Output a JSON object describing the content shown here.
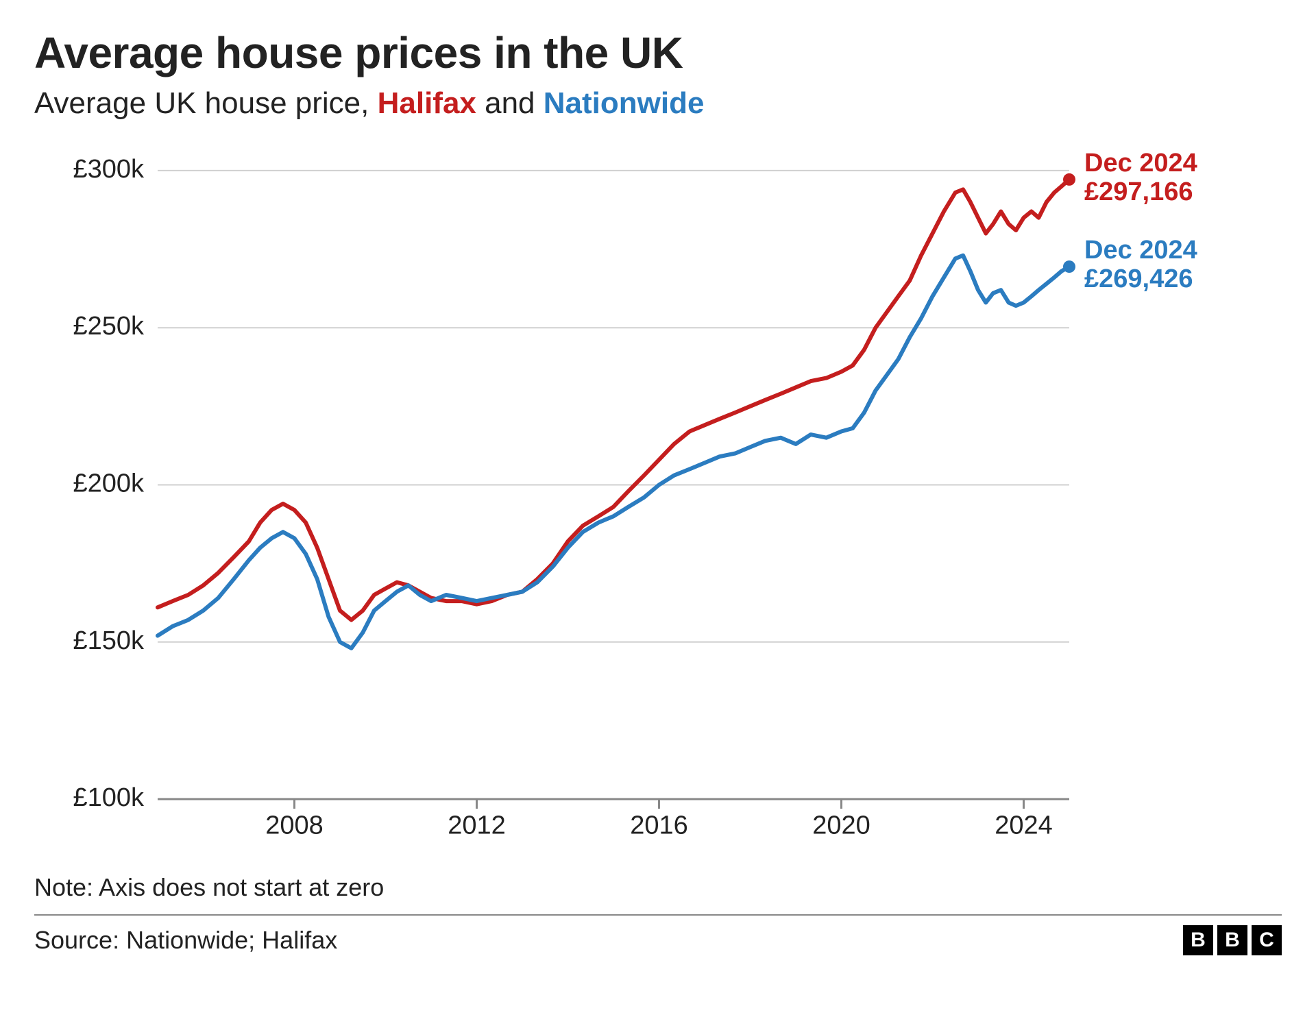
{
  "title": "Average house prices in the UK",
  "subtitle_prefix": "Average UK house price, ",
  "subtitle_series_a": "Halifax",
  "subtitle_join": " and ",
  "subtitle_series_b": "Nationwide",
  "series_a_color": "#c41e1e",
  "series_b_color": "#2b7cc0",
  "note": "Note: Axis does not start at zero",
  "source": "Source: Nationwide; Halifax",
  "logo_letters": [
    "B",
    "B",
    "C"
  ],
  "chart": {
    "type": "line",
    "background_color": "#ffffff",
    "grid_color": "#d0d0d0",
    "axis_color": "#888888",
    "line_width": 6,
    "font_size_axis": 38,
    "font_size_endlabel": 38,
    "x": {
      "min": 2005.0,
      "max": 2025.0,
      "ticks": [
        2008,
        2012,
        2016,
        2020,
        2024
      ],
      "tick_labels": [
        "2008",
        "2012",
        "2016",
        "2020",
        "2024"
      ]
    },
    "y": {
      "min": 100,
      "max": 305,
      "ticks": [
        100,
        150,
        200,
        250,
        300
      ],
      "tick_labels": [
        "£100k",
        "£150k",
        "£200k",
        "£250k",
        "£300k"
      ]
    },
    "series": [
      {
        "name": "Halifax",
        "color": "#c41e1e",
        "end_label_line1": "Dec 2024",
        "end_label_line2": "£297,166",
        "end_value": 297.166,
        "end_marker_radius": 9,
        "data": [
          [
            2005.0,
            161
          ],
          [
            2005.33,
            163
          ],
          [
            2005.67,
            165
          ],
          [
            2006.0,
            168
          ],
          [
            2006.33,
            172
          ],
          [
            2006.67,
            177
          ],
          [
            2007.0,
            182
          ],
          [
            2007.25,
            188
          ],
          [
            2007.5,
            192
          ],
          [
            2007.75,
            194
          ],
          [
            2008.0,
            192
          ],
          [
            2008.25,
            188
          ],
          [
            2008.5,
            180
          ],
          [
            2008.75,
            170
          ],
          [
            2009.0,
            160
          ],
          [
            2009.25,
            157
          ],
          [
            2009.5,
            160
          ],
          [
            2009.75,
            165
          ],
          [
            2010.0,
            167
          ],
          [
            2010.25,
            169
          ],
          [
            2010.5,
            168
          ],
          [
            2010.75,
            166
          ],
          [
            2011.0,
            164
          ],
          [
            2011.33,
            163
          ],
          [
            2011.67,
            163
          ],
          [
            2012.0,
            162
          ],
          [
            2012.33,
            163
          ],
          [
            2012.67,
            165
          ],
          [
            2013.0,
            166
          ],
          [
            2013.33,
            170
          ],
          [
            2013.67,
            175
          ],
          [
            2014.0,
            182
          ],
          [
            2014.33,
            187
          ],
          [
            2014.67,
            190
          ],
          [
            2015.0,
            193
          ],
          [
            2015.33,
            198
          ],
          [
            2015.67,
            203
          ],
          [
            2016.0,
            208
          ],
          [
            2016.33,
            213
          ],
          [
            2016.67,
            217
          ],
          [
            2017.0,
            219
          ],
          [
            2017.33,
            221
          ],
          [
            2017.67,
            223
          ],
          [
            2018.0,
            225
          ],
          [
            2018.33,
            227
          ],
          [
            2018.67,
            229
          ],
          [
            2019.0,
            231
          ],
          [
            2019.33,
            233
          ],
          [
            2019.67,
            234
          ],
          [
            2020.0,
            236
          ],
          [
            2020.25,
            238
          ],
          [
            2020.5,
            243
          ],
          [
            2020.75,
            250
          ],
          [
            2021.0,
            255
          ],
          [
            2021.25,
            260
          ],
          [
            2021.5,
            265
          ],
          [
            2021.75,
            273
          ],
          [
            2022.0,
            280
          ],
          [
            2022.25,
            287
          ],
          [
            2022.5,
            293
          ],
          [
            2022.67,
            294
          ],
          [
            2022.83,
            290
          ],
          [
            2023.0,
            285
          ],
          [
            2023.17,
            280
          ],
          [
            2023.33,
            283
          ],
          [
            2023.5,
            287
          ],
          [
            2023.67,
            283
          ],
          [
            2023.83,
            281
          ],
          [
            2024.0,
            285
          ],
          [
            2024.17,
            287
          ],
          [
            2024.33,
            285
          ],
          [
            2024.5,
            290
          ],
          [
            2024.67,
            293
          ],
          [
            2024.83,
            295
          ],
          [
            2025.0,
            297.166
          ]
        ]
      },
      {
        "name": "Nationwide",
        "color": "#2b7cc0",
        "end_label_line1": "Dec 2024",
        "end_label_line2": "£269,426",
        "end_value": 269.426,
        "end_marker_radius": 9,
        "data": [
          [
            2005.0,
            152
          ],
          [
            2005.33,
            155
          ],
          [
            2005.67,
            157
          ],
          [
            2006.0,
            160
          ],
          [
            2006.33,
            164
          ],
          [
            2006.67,
            170
          ],
          [
            2007.0,
            176
          ],
          [
            2007.25,
            180
          ],
          [
            2007.5,
            183
          ],
          [
            2007.75,
            185
          ],
          [
            2008.0,
            183
          ],
          [
            2008.25,
            178
          ],
          [
            2008.5,
            170
          ],
          [
            2008.75,
            158
          ],
          [
            2009.0,
            150
          ],
          [
            2009.25,
            148
          ],
          [
            2009.5,
            153
          ],
          [
            2009.75,
            160
          ],
          [
            2010.0,
            163
          ],
          [
            2010.25,
            166
          ],
          [
            2010.5,
            168
          ],
          [
            2010.75,
            165
          ],
          [
            2011.0,
            163
          ],
          [
            2011.33,
            165
          ],
          [
            2011.67,
            164
          ],
          [
            2012.0,
            163
          ],
          [
            2012.33,
            164
          ],
          [
            2012.67,
            165
          ],
          [
            2013.0,
            166
          ],
          [
            2013.33,
            169
          ],
          [
            2013.67,
            174
          ],
          [
            2014.0,
            180
          ],
          [
            2014.33,
            185
          ],
          [
            2014.67,
            188
          ],
          [
            2015.0,
            190
          ],
          [
            2015.33,
            193
          ],
          [
            2015.67,
            196
          ],
          [
            2016.0,
            200
          ],
          [
            2016.33,
            203
          ],
          [
            2016.67,
            205
          ],
          [
            2017.0,
            207
          ],
          [
            2017.33,
            209
          ],
          [
            2017.67,
            210
          ],
          [
            2018.0,
            212
          ],
          [
            2018.33,
            214
          ],
          [
            2018.67,
            215
          ],
          [
            2019.0,
            213
          ],
          [
            2019.33,
            216
          ],
          [
            2019.67,
            215
          ],
          [
            2020.0,
            217
          ],
          [
            2020.25,
            218
          ],
          [
            2020.5,
            223
          ],
          [
            2020.75,
            230
          ],
          [
            2021.0,
            235
          ],
          [
            2021.25,
            240
          ],
          [
            2021.5,
            247
          ],
          [
            2021.75,
            253
          ],
          [
            2022.0,
            260
          ],
          [
            2022.25,
            266
          ],
          [
            2022.5,
            272
          ],
          [
            2022.67,
            273
          ],
          [
            2022.83,
            268
          ],
          [
            2023.0,
            262
          ],
          [
            2023.17,
            258
          ],
          [
            2023.33,
            261
          ],
          [
            2023.5,
            262
          ],
          [
            2023.67,
            258
          ],
          [
            2023.83,
            257
          ],
          [
            2024.0,
            258
          ],
          [
            2024.17,
            260
          ],
          [
            2024.33,
            262
          ],
          [
            2024.5,
            264
          ],
          [
            2024.67,
            266
          ],
          [
            2024.83,
            268
          ],
          [
            2025.0,
            269.426
          ]
        ]
      }
    ]
  }
}
